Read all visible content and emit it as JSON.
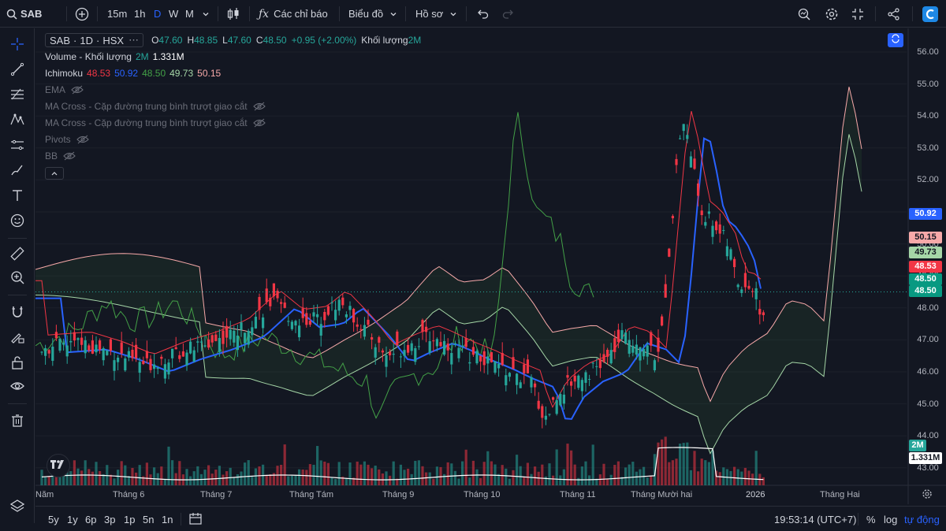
{
  "toolbar": {
    "symbol": "SAB",
    "intervals": [
      "15m",
      "1h",
      "D",
      "W",
      "M"
    ],
    "active_interval": "D",
    "indicators_label": "Các chỉ báo",
    "chart_label": "Biểu đồ",
    "profile_label": "Hồ sơ",
    "accent": "#2962ff"
  },
  "legend": {
    "symbol": "SAB",
    "interval": "1D",
    "exchange": "HSX",
    "o_label": "O",
    "o": "47.60",
    "h_label": "H",
    "h": "48.85",
    "l_label": "L",
    "l": "47.60",
    "c_label": "C",
    "c": "48.50",
    "change": "+0.95 (+2.00%)",
    "vol_label": "Khối lượng",
    "vol_ma": "2M",
    "indicators": [
      {
        "name": "Volume - Khối lượng",
        "values": [
          "2M",
          "1.331M"
        ]
      },
      {
        "name": "Ichimoku",
        "values": [
          "48.53",
          "50.92",
          "48.50",
          "49.73",
          "50.15"
        ]
      },
      {
        "name": "EMA"
      },
      {
        "name": "MA Cross - Cặp đường trung bình trượt giao cắt"
      },
      {
        "name": "MA Cross - Cặp đường trung bình trượt giao cắt"
      },
      {
        "name": "Pivots"
      },
      {
        "name": "BB"
      }
    ]
  },
  "price_axis": {
    "ticks": [
      "56.00",
      "55.00",
      "54.00",
      "53.00",
      "52.00",
      "51.00",
      "50.00",
      "49.00",
      "48.00",
      "47.00",
      "46.00",
      "45.00",
      "44.00",
      "43.00"
    ],
    "tags": [
      {
        "text": "50.92",
        "bg": "#2962ff",
        "fg": "#ffffff"
      },
      {
        "text": "50.15",
        "bg": "#f7a9a9",
        "fg": "#131722"
      },
      {
        "text": "49.73",
        "bg": "#a5d6a7",
        "fg": "#131722"
      },
      {
        "text": "48.53",
        "bg": "#f23645",
        "fg": "#ffffff"
      },
      {
        "text": "48.50",
        "bg": "#089981",
        "fg": "#ffffff"
      },
      {
        "text": "48.50",
        "bg": "#089981",
        "fg": "#ffffff"
      },
      {
        "text": "2M",
        "bg": "#26a69a",
        "fg": "#ffffff"
      },
      {
        "text": "1.331M",
        "bg": "#ffffff",
        "fg": "#131722"
      }
    ]
  },
  "time_axis": [
    "Năm",
    "Tháng 6",
    "Tháng 7",
    "Tháng Tám",
    "Tháng 9",
    "Tháng 10",
    "Tháng 11",
    "Tháng Mười hai",
    "2026",
    "Tháng Hai"
  ],
  "bottom": {
    "ranges": [
      "5y",
      "1y",
      "6p",
      "3p",
      "1p",
      "5n",
      "1n"
    ],
    "clock": "19:53:14 (UTC+7)",
    "percent": "%",
    "log": "log",
    "auto": "tự động"
  },
  "colors": {
    "up": "#26a69a",
    "down": "#f23645",
    "bg": "#131722",
    "grid": "#1e222d"
  },
  "chart_data": {
    "type": "candlestick",
    "symbol": "SAB",
    "ylim": [
      43,
      56.4
    ],
    "last_close": 48.5
  }
}
